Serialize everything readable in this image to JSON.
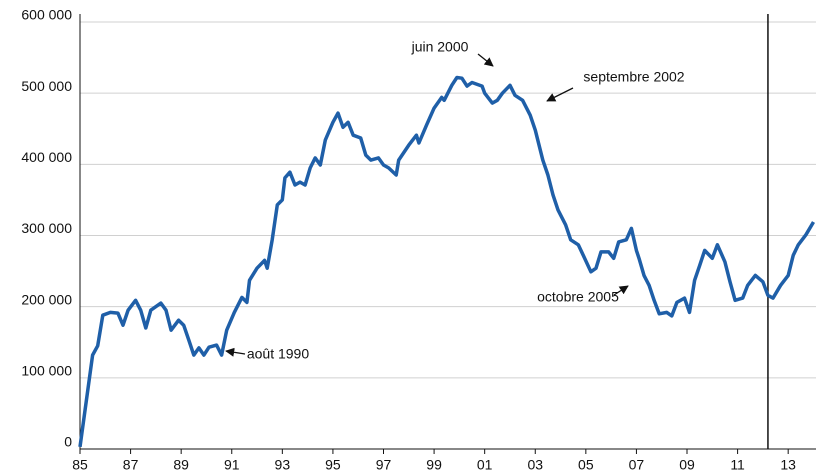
{
  "chart_data": {
    "type": "line",
    "x": [
      1985.0,
      1985.5,
      1985.7,
      1985.9,
      1986.2,
      1986.5,
      1986.7,
      1986.9,
      1987.2,
      1987.4,
      1987.6,
      1987.8,
      1988.2,
      1988.4,
      1988.6,
      1988.9,
      1989.1,
      1989.3,
      1989.5,
      1989.7,
      1989.9,
      1990.1,
      1990.4,
      1990.6,
      1990.8,
      1991.1,
      1991.4,
      1991.6,
      1991.7,
      1992.0,
      1992.3,
      1992.4,
      1992.6,
      1992.8,
      1993.0,
      1993.1,
      1993.3,
      1993.5,
      1993.7,
      1993.9,
      1994.1,
      1994.3,
      1994.5,
      1994.7,
      1995.0,
      1995.2,
      1995.4,
      1995.6,
      1995.8,
      1996.1,
      1996.3,
      1996.5,
      1996.8,
      1997.0,
      1997.2,
      1997.5,
      1997.6,
      1998.0,
      1998.3,
      1998.4,
      1998.7,
      1999.0,
      1999.3,
      1999.4,
      1999.7,
      1999.9,
      2000.1,
      2000.3,
      2000.5,
      2000.9,
      2001.0,
      2001.3,
      2001.5,
      2001.7,
      2002.0,
      2002.2,
      2002.5,
      2002.8,
      2003.0,
      2003.3,
      2003.5,
      2003.7,
      2003.9,
      2004.2,
      2004.4,
      2004.7,
      2004.9,
      2005.2,
      2005.4,
      2005.6,
      2005.9,
      2006.1,
      2006.3,
      2006.6,
      2006.8,
      2007.0,
      2007.1,
      2007.3,
      2007.5,
      2007.7,
      2007.9,
      2008.2,
      2008.4,
      2008.6,
      2008.9,
      2009.1,
      2009.3,
      2009.5,
      2009.7,
      2010.0,
      2010.2,
      2010.5,
      2010.7,
      2010.9,
      2011.2,
      2011.4,
      2011.7,
      2012.0,
      2012.2,
      2012.4,
      2012.7,
      2013.0,
      2013.2,
      2013.4,
      2013.7,
      2014.0
    ],
    "series": [
      {
        "color": "#1f5fa8",
        "values": [
          3000,
          132000,
          145000,
          188000,
          192000,
          191000,
          174000,
          195000,
          209000,
          195000,
          170000,
          195000,
          205000,
          195000,
          167000,
          181000,
          174000,
          153000,
          132000,
          142000,
          132000,
          143000,
          146000,
          132000,
          167000,
          192000,
          213000,
          206000,
          237000,
          254000,
          265000,
          254000,
          294000,
          343000,
          350000,
          381000,
          389000,
          371000,
          375000,
          371000,
          395000,
          409000,
          399000,
          434000,
          459000,
          472000,
          452000,
          459000,
          441000,
          437000,
          413000,
          406000,
          409000,
          399000,
          395000,
          385000,
          406000,
          427000,
          441000,
          430000,
          455000,
          479000,
          494000,
          490000,
          511000,
          522000,
          521000,
          510000,
          515000,
          510000,
          500000,
          486000,
          490000,
          500000,
          511000,
          497000,
          490000,
          469000,
          448000,
          406000,
          385000,
          357000,
          336000,
          315000,
          294000,
          287000,
          272000,
          249000,
          254000,
          277000,
          277000,
          268000,
          291000,
          294000,
          310000,
          279000,
          268000,
          244000,
          230000,
          209000,
          190000,
          192000,
          187000,
          206000,
          212000,
          192000,
          237000,
          258000,
          279000,
          268000,
          287000,
          263000,
          235000,
          209000,
          212000,
          230000,
          244000,
          235000,
          216000,
          212000,
          230000,
          244000,
          272000,
          287000,
          301000,
          319000
        ]
      }
    ],
    "xlim": [
      1985,
      2014.1
    ],
    "ylim": [
      0,
      600000
    ],
    "yticks": [
      0,
      {
        "value": 100000,
        "label": "100 000"
      },
      {
        "value": 200000,
        "label": "200 000"
      },
      {
        "value": 300000,
        "label": "300 000"
      },
      {
        "value": 400000,
        "label": "400 000"
      },
      {
        "value": 500000,
        "label": "500 000"
      },
      {
        "value": 600000,
        "label": "600 000"
      }
    ],
    "xticks": [
      {
        "value": 1985,
        "label": "85"
      },
      {
        "value": 1987,
        "label": "87"
      },
      {
        "value": 1989,
        "label": "89"
      },
      {
        "value": 1991,
        "label": "91"
      },
      {
        "value": 1993,
        "label": "93"
      },
      {
        "value": 1995,
        "label": "95"
      },
      {
        "value": 1997,
        "label": "97"
      },
      {
        "value": 1999,
        "label": "99"
      },
      {
        "value": 2001,
        "label": "01"
      },
      {
        "value": 2003,
        "label": "03"
      },
      {
        "value": 2005,
        "label": "05"
      },
      {
        "value": 2007,
        "label": "07"
      },
      {
        "value": 2009,
        "label": "09"
      },
      {
        "value": 2011,
        "label": "11"
      },
      {
        "value": 2013,
        "label": "13"
      }
    ],
    "vline": 2012.2,
    "grid": true,
    "annotations": [
      "juin 2000",
      "septembre 2002",
      "octobre 2005",
      "août 1990"
    ]
  }
}
